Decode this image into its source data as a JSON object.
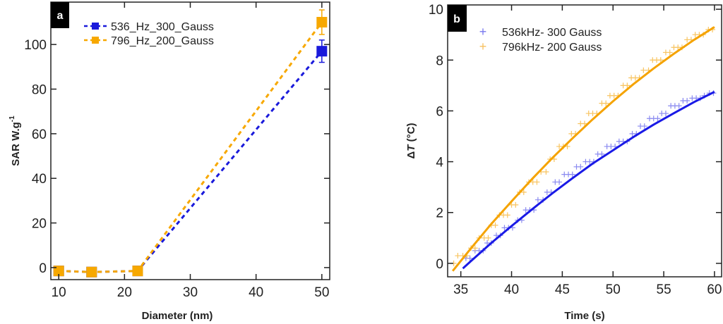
{
  "chart_data": [
    {
      "type": "line",
      "panel_label": "a",
      "xlabel": "Diameter (nm)",
      "ylabel": "SAR W.g",
      "ylabel_superscript": "-1",
      "xlim": [
        8.8,
        51.2
      ],
      "ylim": [
        -5.4,
        119
      ],
      "xticks": [
        "10",
        "20",
        "30",
        "40",
        "50"
      ],
      "yticks": [
        "0",
        "20",
        "40",
        "60",
        "80",
        "100"
      ],
      "grid": false,
      "legend_position": "top-left",
      "categories": [
        10,
        15,
        22,
        50
      ],
      "series": [
        {
          "name": "536_Hz_300_Gauss",
          "color": "#1a1adb",
          "values": [
            -1.5,
            -2,
            -1.5,
            97
          ],
          "errors": [
            1,
            1,
            1,
            5
          ],
          "line": "dashed",
          "marker": "square"
        },
        {
          "name": "796_Hz_200_Gauss",
          "color": "#f7a800",
          "values": [
            -1.5,
            -2,
            -1.5,
            110
          ],
          "errors": [
            1,
            1,
            1,
            5.5
          ],
          "line": "dashed",
          "marker": "square"
        }
      ]
    },
    {
      "type": "scatter",
      "panel_label": "b",
      "xlabel": "Time (s)",
      "ylabel_prefix": "Δ",
      "ylabel_italic": "T",
      "ylabel_suffix": " (°C)",
      "xlim": [
        33.7,
        60.7
      ],
      "ylim": [
        -0.53,
        10.17
      ],
      "xticks": [
        "35",
        "40",
        "45",
        "50",
        "55",
        "60"
      ],
      "yticks": [
        "0",
        "2",
        "4",
        "6",
        "8",
        "10"
      ],
      "grid": false,
      "legend_position": "top-left",
      "series": [
        {
          "name": "536kHz- 300 Gauss",
          "color": "#2a2ae0",
          "marker": "plus",
          "x": [
            35.5,
            35.9,
            36.4,
            36.8,
            37.2,
            37.6,
            38.0,
            38.5,
            38.9,
            39.3,
            39.7,
            40.1,
            40.6,
            41.0,
            41.4,
            41.8,
            42.2,
            42.6,
            43.1,
            43.5,
            43.9,
            44.3,
            44.7,
            45.2,
            45.6,
            46.0,
            46.4,
            46.8,
            47.3,
            47.7,
            48.1,
            48.5,
            48.9,
            49.4,
            49.8,
            50.2,
            50.6,
            51.0,
            51.4,
            51.9,
            52.3,
            52.7,
            53.1,
            53.6,
            54.0,
            54.4,
            54.8,
            55.2,
            55.7,
            56.1,
            56.5,
            56.9,
            57.3,
            57.8,
            58.2,
            58.6,
            59.0,
            59.5,
            59.9
          ],
          "y": [
            0.2,
            0.2,
            0.5,
            0.5,
            0.5,
            0.8,
            0.8,
            1.1,
            1.1,
            1.4,
            1.4,
            1.4,
            1.7,
            1.7,
            2.1,
            2.1,
            2.1,
            2.5,
            2.5,
            2.8,
            2.8,
            3.2,
            3.2,
            3.5,
            3.5,
            3.5,
            3.8,
            3.8,
            4.0,
            4.0,
            4.0,
            4.3,
            4.3,
            4.6,
            4.6,
            4.6,
            4.8,
            4.8,
            4.8,
            5.1,
            5.1,
            5.4,
            5.4,
            5.7,
            5.7,
            5.7,
            5.9,
            5.9,
            6.2,
            6.2,
            6.2,
            6.4,
            6.4,
            6.5,
            6.5,
            6.5,
            6.6,
            6.7,
            6.7
          ],
          "fit": {
            "x": [
              35.2,
              36,
              38,
              40,
              42,
              44,
              46,
              48,
              50,
              52,
              54,
              56,
              58,
              60
            ],
            "y": [
              -0.2,
              0.09,
              0.8,
              1.47,
              2.12,
              2.75,
              3.35,
              3.93,
              4.45,
              4.97,
              5.46,
              5.91,
              6.35,
              6.75
            ],
            "color": "#1a1ae6"
          }
        },
        {
          "name": "796kHz- 200 Gauss",
          "color": "#f7b030",
          "marker": "plus",
          "x": [
            34.3,
            34.7,
            35.2,
            35.6,
            36.0,
            36.4,
            36.8,
            37.3,
            37.7,
            38.0,
            38.4,
            38.8,
            39.2,
            39.6,
            40.0,
            40.4,
            40.8,
            41.2,
            41.7,
            42.1,
            42.5,
            42.9,
            43.4,
            43.8,
            44.2,
            44.7,
            45.1,
            45.5,
            45.9,
            46.3,
            46.8,
            47.2,
            47.6,
            48.0,
            48.4,
            48.9,
            49.3,
            49.7,
            50.1,
            50.5,
            51.0,
            51.4,
            51.8,
            52.2,
            52.6,
            53.0,
            53.5,
            53.9,
            54.3,
            54.7,
            55.2,
            55.6,
            56.0,
            56.4,
            56.8,
            57.3,
            57.7,
            58.1,
            58.5,
            58.9,
            59.4,
            59.8
          ],
          "y": [
            0,
            0.3,
            0.3,
            0.3,
            0.6,
            0.6,
            1.0,
            1.0,
            1.0,
            1.5,
            1.5,
            1.9,
            1.9,
            1.9,
            2.3,
            2.3,
            2.8,
            2.8,
            3.2,
            3.2,
            3.2,
            3.6,
            3.6,
            4.1,
            4.1,
            4.6,
            4.6,
            4.6,
            5.1,
            5.1,
            5.5,
            5.5,
            5.9,
            5.9,
            5.9,
            6.3,
            6.3,
            6.6,
            6.6,
            6.6,
            7.0,
            7.0,
            7.3,
            7.3,
            7.3,
            7.6,
            7.6,
            8.0,
            8.0,
            8.0,
            8.3,
            8.3,
            8.5,
            8.5,
            8.5,
            8.8,
            8.8,
            9.0,
            9.0,
            9.0,
            9.2,
            9.2
          ],
          "fit": {
            "x": [
              34.2,
              36,
              38,
              40,
              42,
              44,
              46,
              48,
              50,
              52,
              54,
              56,
              58,
              60
            ],
            "y": [
              -0.3,
              0.59,
              1.55,
              2.44,
              3.31,
              4.14,
              4.92,
              5.67,
              6.38,
              7.05,
              7.67,
              8.25,
              8.8,
              9.3
            ],
            "color": "#f5a300"
          }
        }
      ]
    }
  ]
}
